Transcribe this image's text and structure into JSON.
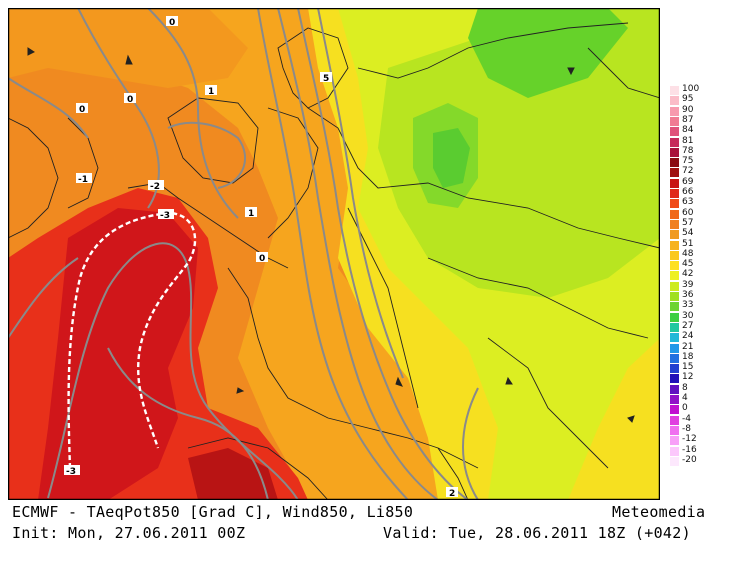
{
  "map": {
    "contour_labels": [
      {
        "text": "0"
      },
      {
        "text": "0"
      },
      {
        "text": "0"
      },
      {
        "text": "1"
      },
      {
        "text": "-1"
      },
      {
        "text": "-2"
      },
      {
        "text": "-3"
      },
      {
        "text": "1"
      },
      {
        "text": "0"
      },
      {
        "text": "5"
      },
      {
        "text": "-3"
      },
      {
        "text": "2"
      }
    ]
  },
  "legend": {
    "values": [
      "100",
      "95",
      "90",
      "87",
      "84",
      "81",
      "78",
      "75",
      "72",
      "69",
      "66",
      "63",
      "60",
      "57",
      "54",
      "51",
      "48",
      "45",
      "42",
      "39",
      "36",
      "33",
      "30",
      "27",
      "24",
      "21",
      "18",
      "15",
      "12",
      "8",
      "4",
      "0",
      "-4",
      "-8",
      "-12",
      "-16",
      "-20"
    ],
    "colors": [
      "#fde0e6",
      "#fbbcc8",
      "#f79aae",
      "#f07b93",
      "#e0527a",
      "#c62a5a",
      "#a8103a",
      "#8a0a12",
      "#a01010",
      "#c81414",
      "#e02818",
      "#f04a18",
      "#f06818",
      "#f08020",
      "#f09a20",
      "#f6b21e",
      "#fac81c",
      "#fee020",
      "#eef020",
      "#cdeb1e",
      "#a0e020",
      "#6cd430",
      "#3ccf40",
      "#20c8a0",
      "#20b8d8",
      "#2098e8",
      "#2070e0",
      "#2040d0",
      "#2010b8",
      "#6010c0",
      "#9010c8",
      "#c010d0",
      "#e040e0",
      "#f070f0",
      "#f8a0f8",
      "#fcc8fc",
      "#fde8fd"
    ]
  },
  "captions": {
    "title": "ECMWF - TAeqPot850 [Grad C], Wind850, Li850",
    "brand": "Meteomedia",
    "init": "Init: Mon, 27.06.2011 00Z",
    "valid": "Valid: Tue, 28.06.2011 18Z (+042)"
  }
}
